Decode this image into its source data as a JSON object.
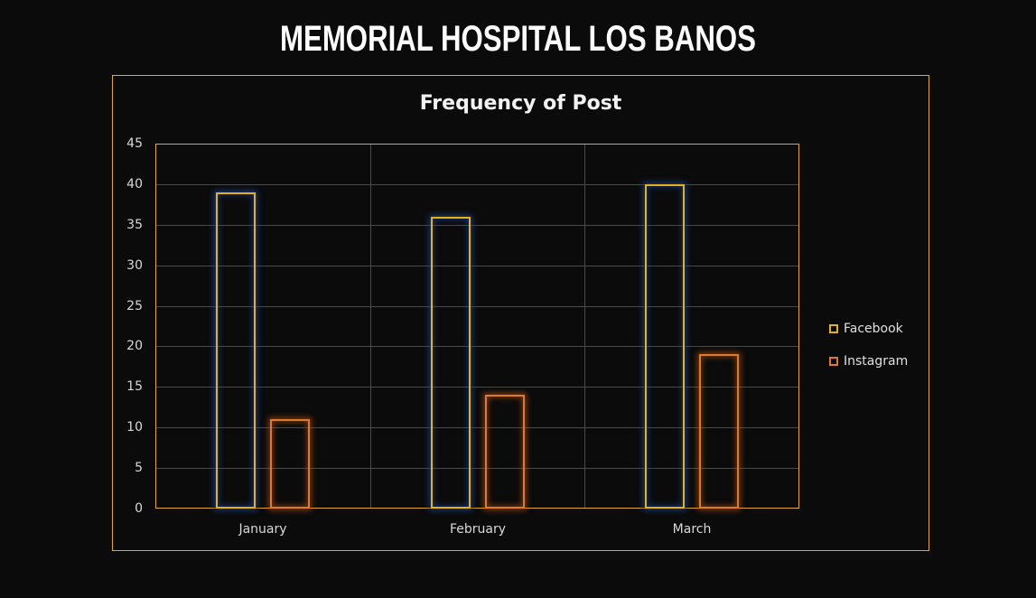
{
  "page": {
    "title": "MEMORIAL HOSPITAL LOS BANOS"
  },
  "chart_data": {
    "type": "bar",
    "title": "Frequency of Post",
    "xlabel": "",
    "ylabel": "",
    "categories": [
      "January",
      "February",
      "March"
    ],
    "series": [
      {
        "name": "Facebook",
        "values": [
          39,
          36,
          40
        ],
        "color": "#e6b117"
      },
      {
        "name": "Instagram",
        "values": [
          11,
          14,
          19
        ],
        "color": "#e07a2a"
      }
    ],
    "ylim": [
      0,
      45
    ],
    "yticks": [
      "0",
      "5",
      "10",
      "15",
      "20",
      "25",
      "30",
      "35",
      "40",
      "45"
    ],
    "grid": true,
    "legend_position": "right"
  }
}
